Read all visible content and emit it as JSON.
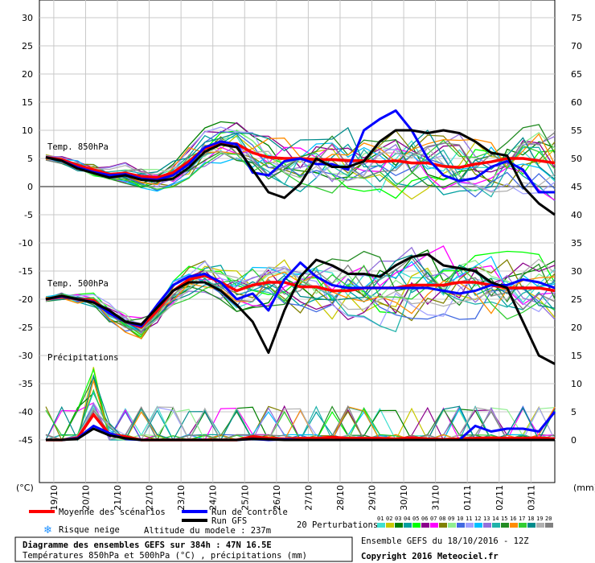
{
  "chart_data": {
    "type": "line",
    "title": "Diagramme des ensembles GEFS sur 384h : 47N 16.5E",
    "subtitle": "Températures 850hPa et 500hPa (°C) , précipitations (mm)",
    "left_unit": "(°C)",
    "right_unit": "(mm)",
    "left_ticks": [
      30,
      25,
      20,
      15,
      10,
      5,
      0,
      -5,
      -10,
      -15,
      -20,
      -25,
      -30,
      -35,
      -40,
      -45
    ],
    "right_ticks": [
      75,
      70,
      65,
      60,
      55,
      50,
      45,
      40,
      35,
      30,
      25,
      20,
      15,
      10,
      5,
      0
    ],
    "x_labels": [
      "19/10",
      "20/10",
      "21/10",
      "22/10",
      "23/10",
      "24/10",
      "25/10",
      "26/10",
      "27/10",
      "28/10",
      "29/10",
      "30/10",
      "31/10",
      "01/11",
      "02/11",
      "03/11"
    ],
    "panel_labels": {
      "t850": "Temp. 850hPa",
      "t500": "Temp. 500hPa",
      "precip": "Précipitations"
    },
    "x": [
      0,
      12,
      24,
      36,
      48,
      60,
      72,
      84,
      96,
      108,
      120,
      132,
      144,
      156,
      168,
      180,
      192,
      204,
      216,
      228,
      240,
      252,
      264,
      276,
      288,
      300,
      312,
      324,
      336,
      348,
      360,
      372,
      384
    ],
    "series": [
      {
        "name": "Moyenne des scénarios",
        "role": "t850",
        "color": "#ff0000",
        "values": [
          5.2,
          4.8,
          3.8,
          3.0,
          2.2,
          2.4,
          1.8,
          1.6,
          2.5,
          4.5,
          6.8,
          7.6,
          7.6,
          6.0,
          5.2,
          5.0,
          5.0,
          4.8,
          4.8,
          4.6,
          4.6,
          4.4,
          4.6,
          4.2,
          4.2,
          3.6,
          3.4,
          4.0,
          4.4,
          5.0,
          5.0,
          4.6,
          4.2
        ]
      },
      {
        "name": "Run de contrôle",
        "role": "t850",
        "color": "#0000ff",
        "values": [
          5.2,
          4.6,
          3.4,
          2.6,
          2.0,
          2.2,
          1.4,
          1.2,
          2.0,
          4.0,
          7.0,
          8.0,
          7.5,
          2.5,
          2.0,
          4.5,
          5.0,
          4.0,
          4.0,
          3.0,
          10.0,
          12.0,
          13.5,
          10.0,
          5.0,
          2.0,
          1.0,
          1.5,
          3.5,
          4.5,
          3.0,
          -1.0,
          -1.0
        ]
      },
      {
        "name": "Run GFS",
        "role": "t850",
        "color": "#000000",
        "values": [
          5.2,
          4.6,
          3.2,
          2.4,
          1.6,
          2.0,
          1.2,
          1.0,
          1.4,
          3.4,
          6.2,
          7.5,
          7.0,
          3.0,
          -1.0,
          -2.0,
          0.5,
          5.0,
          3.5,
          3.5,
          4.5,
          8.0,
          10.0,
          10.0,
          9.5,
          10.0,
          9.5,
          8.0,
          6.0,
          5.5,
          0.0,
          -3.0,
          -5.0
        ]
      },
      {
        "name": "Moyenne des scénarios",
        "role": "t500",
        "color": "#ff0000",
        "values": [
          -20.0,
          -19.6,
          -20.0,
          -20.2,
          -22.5,
          -24.0,
          -25.0,
          -22.0,
          -18.5,
          -16.5,
          -15.8,
          -17.0,
          -18.5,
          -17.5,
          -17.0,
          -17.0,
          -17.8,
          -17.8,
          -18.5,
          -18.5,
          -18.0,
          -18.0,
          -18.0,
          -17.5,
          -17.5,
          -17.5,
          -17.0,
          -17.0,
          -17.5,
          -18.0,
          -18.0,
          -18.0,
          -18.5
        ]
      },
      {
        "name": "Run de contrôle",
        "role": "t500",
        "color": "#0000ff",
        "values": [
          -20.0,
          -19.5,
          -20.0,
          -20.5,
          -22.5,
          -24.0,
          -24.8,
          -21.0,
          -17.5,
          -16.0,
          -15.5,
          -17.0,
          -20.0,
          -19.0,
          -22.0,
          -16.5,
          -13.5,
          -16.0,
          -17.5,
          -18.0,
          -18.0,
          -18.0,
          -18.0,
          -18.0,
          -18.0,
          -18.5,
          -19.0,
          -18.5,
          -17.5,
          -17.5,
          -16.5,
          -17.0,
          -18.0
        ]
      },
      {
        "name": "Run GFS",
        "role": "t500",
        "color": "#000000",
        "values": [
          -20.0,
          -19.4,
          -20.0,
          -20.6,
          -22.0,
          -24.0,
          -24.5,
          -21.5,
          -18.5,
          -17.0,
          -17.0,
          -18.5,
          -21.0,
          -24.0,
          -29.5,
          -22.0,
          -16.0,
          -13.0,
          -14.0,
          -15.5,
          -15.5,
          -16.0,
          -14.0,
          -12.5,
          -12.0,
          -14.0,
          -14.5,
          -15.0,
          -17.0,
          -18.0,
          -24.0,
          -30.0,
          -31.5
        ]
      },
      {
        "name": "Moyenne des scénarios",
        "role": "precip",
        "color": "#ff0000",
        "values": [
          0,
          0,
          0.4,
          4.5,
          1.0,
          0.6,
          0,
          0,
          0,
          0,
          0,
          0,
          0,
          0.6,
          0.3,
          0.2,
          0.3,
          0.3,
          0.5,
          0.3,
          0.3,
          0.3,
          0.2,
          0.4,
          0.2,
          0.1,
          0.2,
          0.3,
          0.4,
          0.3,
          0.3,
          0.4,
          0.2
        ]
      },
      {
        "name": "Run de contrôle",
        "role": "precip",
        "color": "#0000ff",
        "values": [
          0,
          0,
          0.3,
          2.5,
          1.2,
          0.2,
          0,
          0,
          0,
          0,
          0,
          0,
          0,
          0.2,
          0,
          0.1,
          0,
          0,
          0,
          0,
          0,
          0,
          0,
          0,
          0,
          0,
          0,
          2.5,
          1.5,
          2.0,
          2.0,
          1.5,
          5.0
        ]
      },
      {
        "name": "Run GFS",
        "role": "precip",
        "color": "#000000",
        "values": [
          0,
          0,
          0.2,
          2.0,
          0.8,
          0.3,
          0,
          0,
          0,
          0,
          0,
          0,
          0,
          0.2,
          0.1,
          0,
          0,
          0,
          0,
          0,
          0,
          0,
          0,
          0,
          0,
          0,
          0,
          0,
          0,
          0,
          0,
          0,
          0
        ]
      }
    ],
    "perturbation_colors": [
      "#40e0d0",
      "#c8c800",
      "#008000",
      "#00a0a0",
      "#00ff00",
      "#8b008b",
      "#ff00ff",
      "#808000",
      "#90ee90",
      "#4169e1",
      "#a0a0ff",
      "#00bfff",
      "#9370db",
      "#20b2aa",
      "#228b22",
      "#ff8c00",
      "#32cd32",
      "#008b8b",
      "#b0b0b0",
      "#808080"
    ],
    "perturbation_numbers": [
      "01",
      "02",
      "03",
      "04",
      "05",
      "06",
      "07",
      "08",
      "09",
      "10",
      "11",
      "12",
      "13",
      "14",
      "15",
      "16",
      "17",
      "18",
      "19",
      "20"
    ]
  },
  "legend": {
    "mean": "Moyenne des scénarios",
    "control": "Run de contrôle",
    "gfs": "Run GFS",
    "snow": "Risque neige",
    "altitude": "Altitude du modele : 237m",
    "perturbations": "20 Perturbations",
    "ensemble_info": "Ensemble GEFS du 18/10/2016 - 12Z",
    "copyright": "Copyright 2016 Meteociel.fr"
  }
}
